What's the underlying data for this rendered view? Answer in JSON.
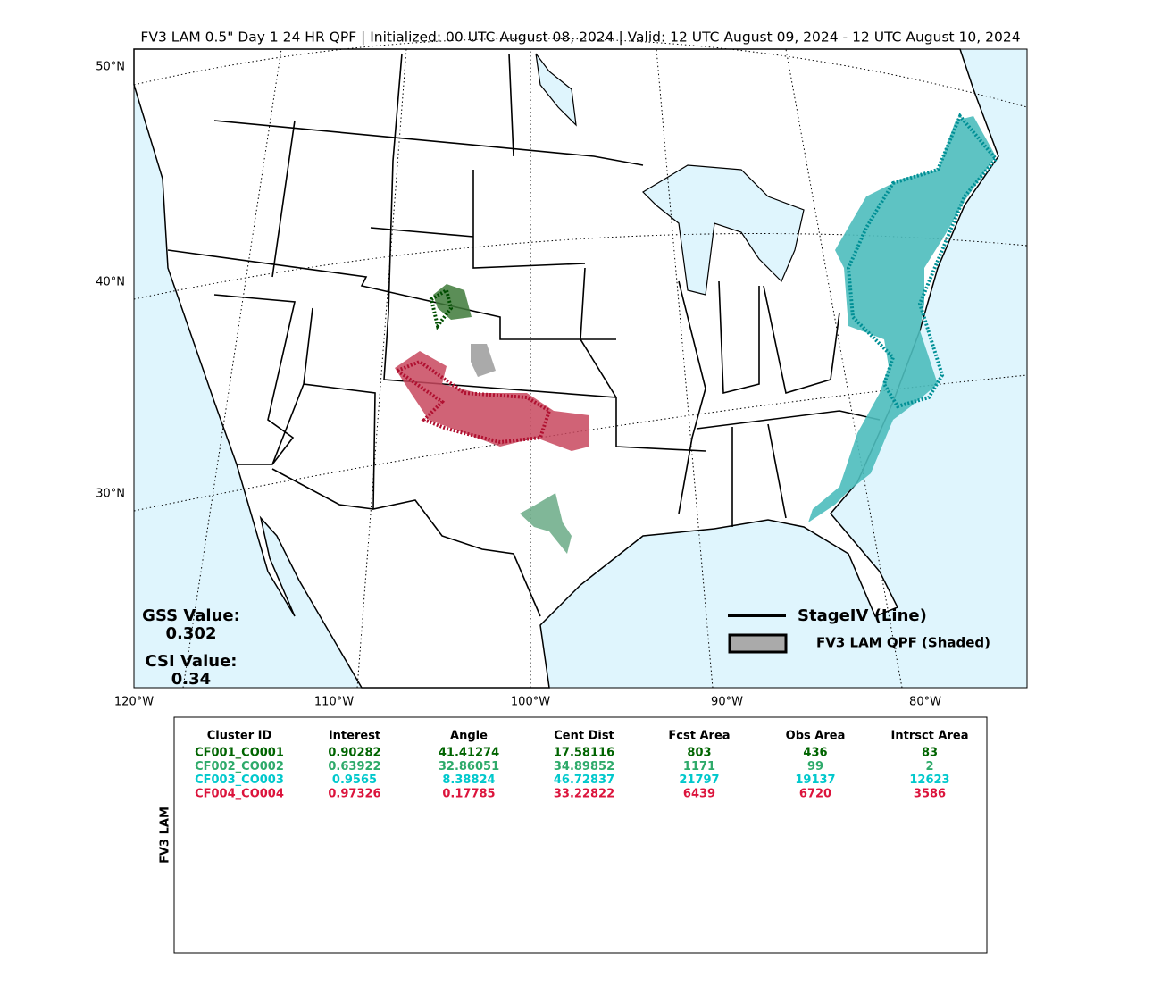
{
  "title": "FV3 LAM 0.5\" Day 1 24 HR QPF | Initialized: 00 UTC August 08, 2024 | Valid: 12 UTC August 09, 2024 - 12 UTC August 10, 2024",
  "map": {
    "lat_labels": [
      "50°N",
      "40°N",
      "30°N"
    ],
    "lon_labels": [
      "120°W",
      "110°W",
      "100°W",
      "90°W",
      "80°W"
    ]
  },
  "scores": {
    "gss_label": "GSS Value:",
    "gss_value": "0.302",
    "csi_label": "CSI Value:",
    "csi_value": "0.34"
  },
  "legend": {
    "line_label": "StageIV (Line)",
    "shaded_label": "FV3 LAM QPF (Shaded)"
  },
  "table": {
    "side_label": "FV3 LAM",
    "headers": [
      "Cluster ID",
      "Interest",
      "Angle",
      "Cent Dist",
      "Fcst Area",
      "Obs Area",
      "Intrsct Area"
    ],
    "rows": [
      {
        "color": "#006400",
        "cells": [
          "CF001_CO001",
          "0.90282",
          "41.41274",
          "17.58116",
          "803",
          "436",
          "83"
        ]
      },
      {
        "color": "#2eaa6a",
        "cells": [
          "CF002_CO002",
          "0.63922",
          "32.86051",
          "34.89852",
          "1171",
          "99",
          "2"
        ]
      },
      {
        "color": "#00c8cc",
        "cells": [
          "CF003_CO003",
          "0.9565",
          "8.38824",
          "46.72837",
          "21797",
          "19137",
          "12623"
        ]
      },
      {
        "color": "#dc143c",
        "cells": [
          "CF004_CO004",
          "0.97326",
          "0.17785",
          "33.22822",
          "6439",
          "6720",
          "3586"
        ]
      }
    ]
  }
}
